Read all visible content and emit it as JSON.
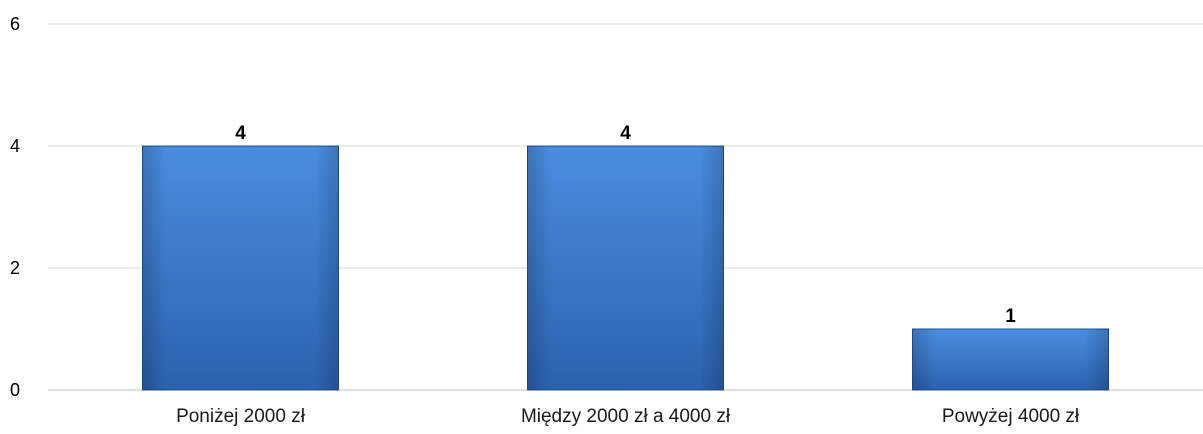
{
  "chart_data": {
    "type": "bar",
    "categories": [
      "Poniżej 2000 zł",
      "Między 2000 zł a 4000 zł",
      "Powyżej 4000 zł"
    ],
    "values": [
      4,
      4,
      1
    ],
    "data_labels": [
      "4",
      "4",
      "1"
    ],
    "yticks": [
      "0",
      "2",
      "4",
      "6"
    ],
    "ylim": [
      0,
      6
    ],
    "grid": true,
    "legend": "none",
    "title": "",
    "xlabel": "",
    "ylabel": ""
  },
  "colors": {
    "bar_top": "#4a8de0",
    "bar_bottom": "#2b62ae",
    "bar_edge": "#1f4f92"
  }
}
